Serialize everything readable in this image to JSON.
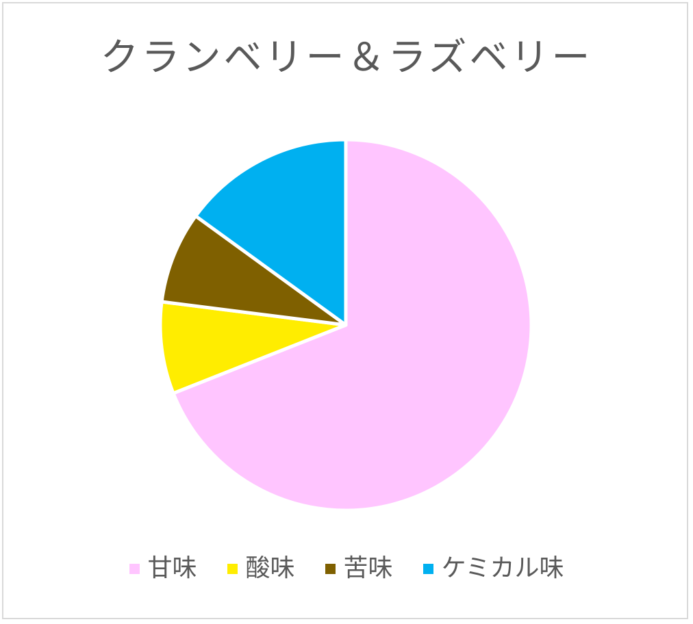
{
  "chart_data": {
    "type": "pie",
    "title": "クランベリー＆ラズベリー",
    "categories": [
      "甘味",
      "酸味",
      "苦味",
      "ケミカル味"
    ],
    "values": [
      69,
      8,
      8,
      15
    ],
    "colors": [
      "#ffc5ff",
      "#ffed00",
      "#7f6000",
      "#00b0f0"
    ],
    "start_angle_deg": 0,
    "direction": "clockwise",
    "legend_position": "bottom",
    "slice_border_color": "#ffffff"
  }
}
